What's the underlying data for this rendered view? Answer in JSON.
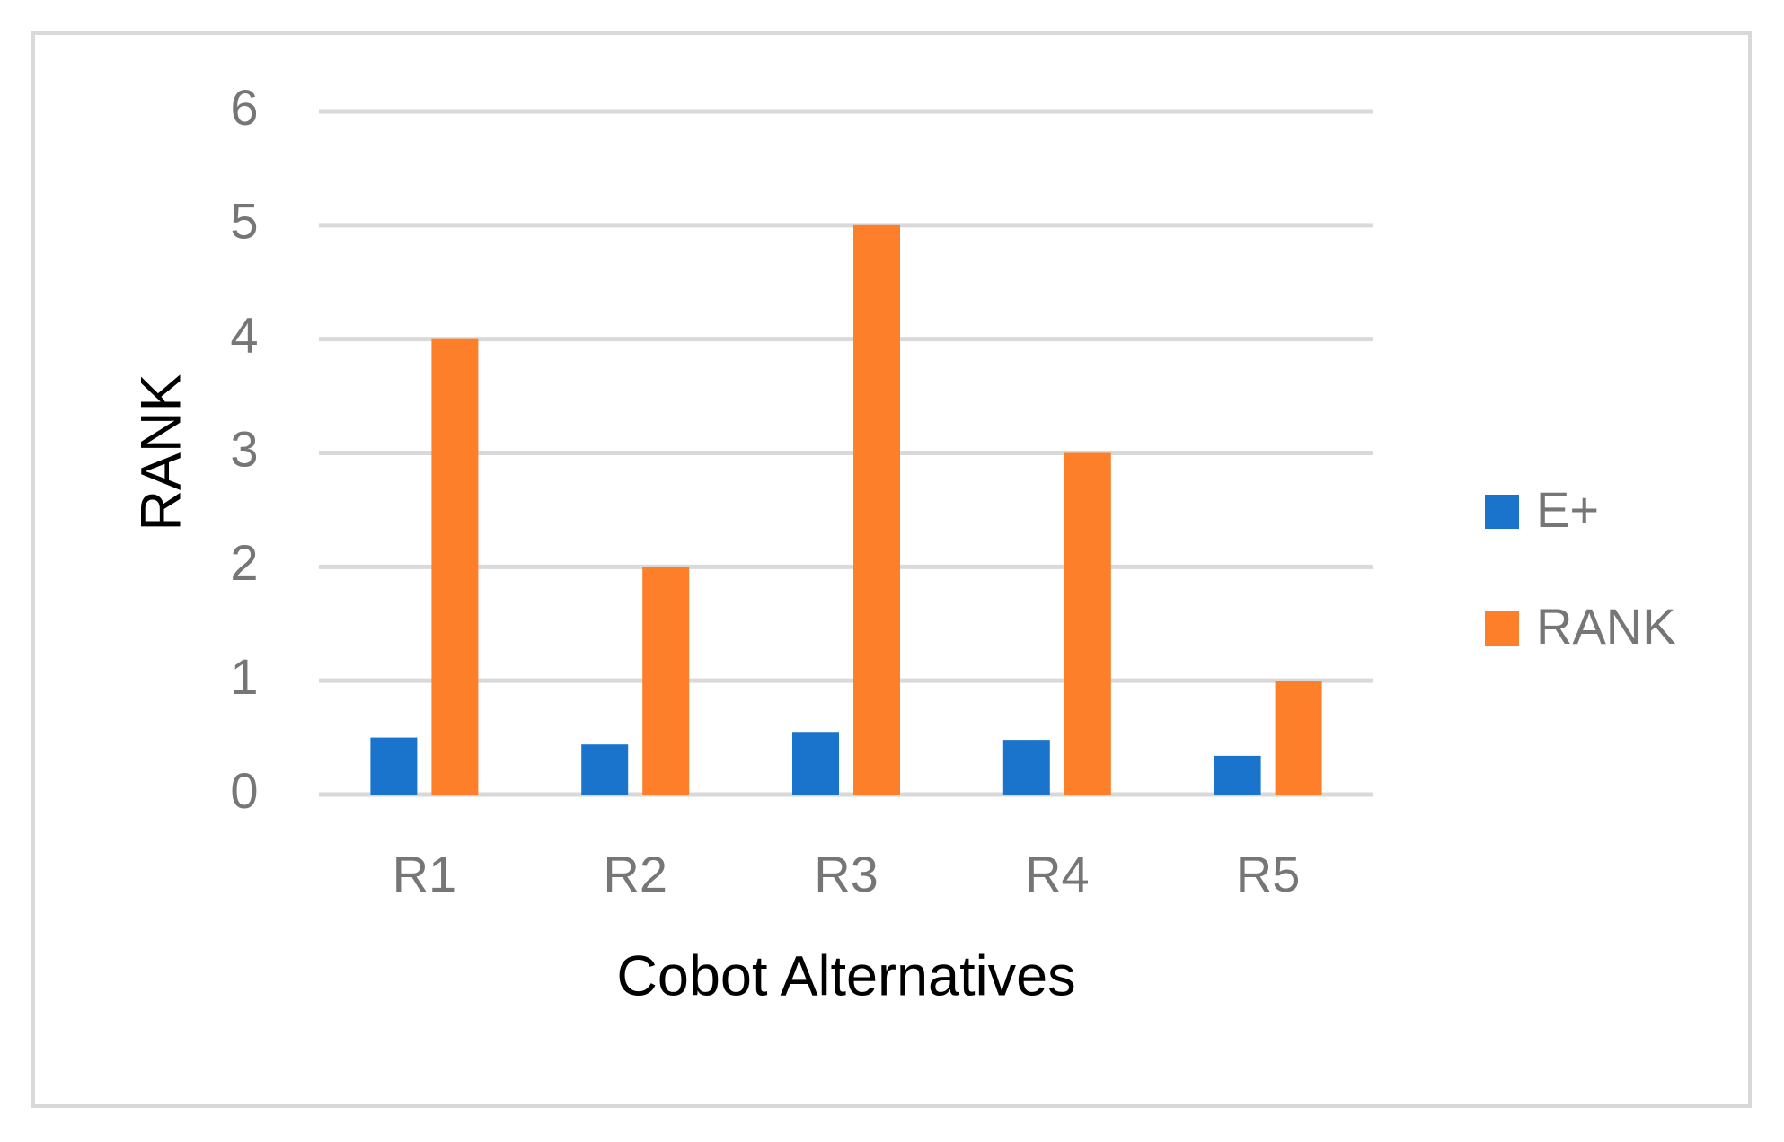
{
  "chart_data": {
    "type": "bar",
    "x_label": "Cobot Alternatives",
    "y_label": "RANK",
    "categories": [
      "R1",
      "R2",
      "R3",
      "R4",
      "R5"
    ],
    "series": [
      {
        "name": "E+",
        "color": "#1b74cc",
        "values": [
          0.5,
          0.44,
          0.55,
          0.48,
          0.34
        ]
      },
      {
        "name": "RANK",
        "color": "#fd7f2a",
        "values": [
          4,
          2,
          5,
          3,
          1
        ]
      }
    ],
    "ylim": [
      0,
      6
    ],
    "yticks": [
      0,
      1,
      2,
      3,
      4,
      5,
      6
    ],
    "grid": true,
    "legend": "right"
  }
}
